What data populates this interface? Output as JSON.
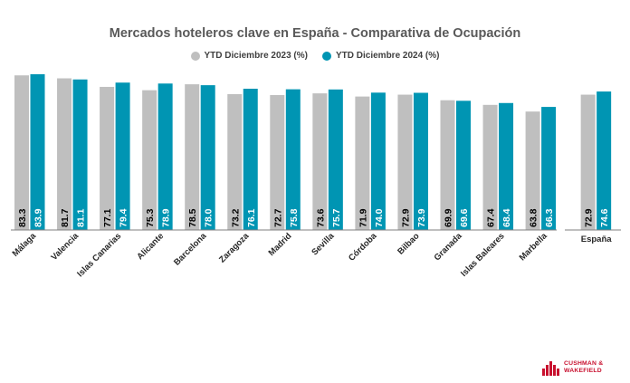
{
  "chart_data": {
    "type": "bar",
    "title": "Mercados hoteleros clave en España - Comparativa de Ocupación",
    "xlabel": "",
    "ylabel": "",
    "ylim": [
      0,
      90
    ],
    "grid": false,
    "legend_position": "top-center",
    "categories": [
      "Málaga",
      "Valencia",
      "Islas Canarias",
      "Alicante",
      "Barcelona",
      "Zaragoza",
      "Madrid",
      "Sevilla",
      "Córdoba",
      "Bilbao",
      "Granada",
      "Islas Baleares",
      "Marbella",
      "España"
    ],
    "series": [
      {
        "name": "YTD Diciembre 2023 (%)",
        "color": "#bfbfbf",
        "values": [
          83.3,
          81.7,
          77.1,
          75.3,
          78.5,
          73.2,
          72.7,
          73.6,
          71.9,
          72.9,
          69.9,
          67.4,
          63.8,
          72.9
        ],
        "labels": [
          "83.3",
          "81.7",
          "77.1",
          "75.3",
          "78.5",
          "73.2",
          "72.7",
          "73.6",
          "71.9",
          "72.9",
          "69.9",
          "67.4",
          "63.8",
          "72.9"
        ]
      },
      {
        "name": "YTD Diciembre 2024 (%)",
        "color": "#0095b3",
        "values": [
          83.9,
          81.1,
          79.4,
          78.9,
          78.0,
          76.1,
          75.8,
          75.7,
          74.0,
          73.9,
          69.6,
          68.4,
          66.3,
          74.6
        ],
        "labels": [
          "83.9",
          "81.1",
          "79.4",
          "78.9",
          "78.0",
          "76.1",
          "75.8",
          "75.7",
          "74.0",
          "73.9",
          "69.6",
          "68.4",
          "66.3",
          "74.6"
        ]
      }
    ]
  },
  "brand": {
    "name": "CUSHMAN &\nWAKEFIELD",
    "color": "#c8102e",
    "icon": "cushman-wakefield-logo-icon"
  }
}
